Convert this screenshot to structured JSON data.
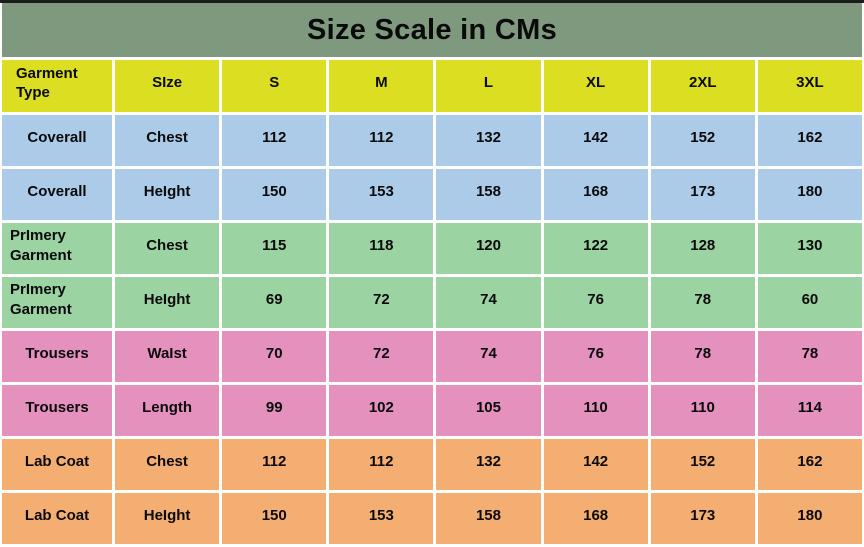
{
  "title": "Size Scale in CMs",
  "colors": {
    "top_line": "#1b1b1b",
    "title_bar": "#7e997e",
    "header": "#dbde21",
    "coverall": "#abcbe9",
    "primery": "#9cd3a3",
    "trousers": "#e591be",
    "labcoat": "#f5ae71",
    "text": "#0a0a0a",
    "frame": "#ffffff"
  },
  "table": {
    "headers": [
      "Garment Type",
      "SIze",
      "S",
      "M",
      "L",
      "XL",
      "2XL",
      "3XL"
    ],
    "rows": [
      {
        "garment": "Coverall",
        "measure": "Chest",
        "group": "coverall",
        "values": [
          "112",
          "112",
          "132",
          "142",
          "152",
          "162"
        ]
      },
      {
        "garment": "Coverall",
        "measure": "HeIght",
        "group": "coverall",
        "values": [
          "150",
          "153",
          "158",
          "168",
          "173",
          "180"
        ]
      },
      {
        "garment": "PrImery Garment",
        "measure": "Chest",
        "group": "primery",
        "values": [
          "115",
          "118",
          "120",
          "122",
          "128",
          "130"
        ]
      },
      {
        "garment": "PrImery Garment",
        "measure": "HeIght",
        "group": "primery",
        "values": [
          "69",
          "72",
          "74",
          "76",
          "78",
          "60"
        ]
      },
      {
        "garment": "Trousers",
        "measure": "WaIst",
        "group": "trousers",
        "values": [
          "70",
          "72",
          "74",
          "76",
          "78",
          "78"
        ]
      },
      {
        "garment": "Trousers",
        "measure": "Length",
        "group": "trousers",
        "values": [
          "99",
          "102",
          "105",
          "110",
          "110",
          "114"
        ]
      },
      {
        "garment": "Lab Coat",
        "measure": "Chest",
        "group": "labcoat",
        "values": [
          "112",
          "112",
          "132",
          "142",
          "152",
          "162"
        ]
      },
      {
        "garment": "Lab Coat",
        "measure": "HeIght",
        "group": "labcoat",
        "values": [
          "150",
          "153",
          "158",
          "168",
          "173",
          "180"
        ]
      }
    ]
  },
  "chart_data": {
    "type": "table",
    "title": "Size Scale in CMs",
    "columns": [
      "Garment Type",
      "SIze",
      "S",
      "M",
      "L",
      "XL",
      "2XL",
      "3XL"
    ],
    "rows": [
      [
        "Coverall",
        "Chest",
        112,
        112,
        132,
        142,
        152,
        162
      ],
      [
        "Coverall",
        "HeIght",
        150,
        153,
        158,
        168,
        173,
        180
      ],
      [
        "PrImery Garment",
        "Chest",
        115,
        118,
        120,
        122,
        128,
        130
      ],
      [
        "PrImery Garment",
        "HeIght",
        69,
        72,
        74,
        76,
        78,
        60
      ],
      [
        "Trousers",
        "WaIst",
        70,
        72,
        74,
        76,
        78,
        78
      ],
      [
        "Trousers",
        "Length",
        99,
        102,
        105,
        110,
        110,
        114
      ],
      [
        "Lab Coat",
        "Chest",
        112,
        112,
        132,
        142,
        152,
        162
      ],
      [
        "Lab Coat",
        "HeIght",
        150,
        153,
        158,
        168,
        173,
        180
      ]
    ]
  }
}
